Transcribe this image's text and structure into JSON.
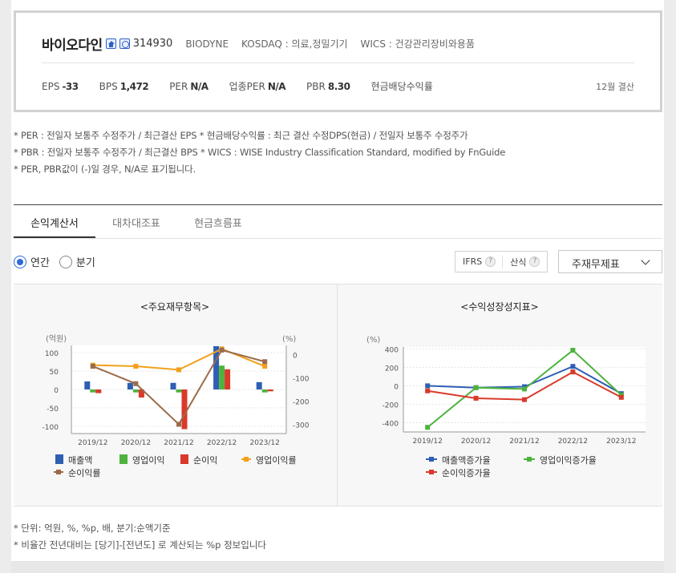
{
  "company": {
    "name": "바이오다인",
    "code": "314930",
    "english": "BIODYNE",
    "market": "KOSDAQ : 의료,정밀기기",
    "wics": "WICS : 건강관리장비와용품"
  },
  "metrics": [
    {
      "label": "EPS",
      "value": "-33"
    },
    {
      "label": "BPS",
      "value": "1,472"
    },
    {
      "label": "PER",
      "value": "N/A"
    },
    {
      "label": "업종PER",
      "value": "N/A"
    },
    {
      "label": "PBR",
      "value": "8.30"
    },
    {
      "label": "현금배당수익률",
      "value": ""
    }
  ],
  "fiscal": "12월 결산",
  "notes": [
    "* PER : 전일자 보통주 수정주가 / 최근결산 EPS * 현금배당수익률 : 최근 결산 수정DPS(현금) / 전일자 보통주 수정주가",
    "* PBR : 전일자 보통주 수정주가 / 최근결산 BPS * WICS : WISE Industry Classification Standard, modified by FnGuide",
    "* PER, PBR값이 (-)일 경우, N/A로 표기됩니다."
  ],
  "tabs": [
    "손익계산서",
    "대차대조표",
    "현금흐름표"
  ],
  "period": {
    "annual": "연간",
    "quarter": "분기"
  },
  "options": {
    "ifrs": "IFRS",
    "consolidated": "산식",
    "help": "?"
  },
  "select": "주재무제표",
  "colors": {
    "blue": "#2e5fb3",
    "green": "#4db33d",
    "red": "#d93a2b",
    "orange": "#f2a01b",
    "brown": "#9a6b4a"
  },
  "chart_data": [
    {
      "type": "bar",
      "title": "<주요재무항목>",
      "categories": [
        "2019/12",
        "2020/12",
        "2021/12",
        "2022/12",
        "2023/12"
      ],
      "ylabel": "(억원)",
      "y2label": "(%)",
      "ylim": [
        -120,
        120
      ],
      "y2lim": [
        -340,
        40
      ],
      "yticks": [
        100,
        50,
        0,
        -50,
        -100
      ],
      "y2ticks": [
        0,
        -100,
        -200,
        -300
      ],
      "series": [
        {
          "name": "매출액",
          "kind": "bar",
          "color": "#2e5fb3",
          "values": [
            22,
            18,
            18,
            118,
            20
          ]
        },
        {
          "name": "영업이익",
          "kind": "bar",
          "color": "#4db33d",
          "values": [
            -8,
            -8,
            -8,
            65,
            -8
          ]
        },
        {
          "name": "순이익",
          "kind": "bar",
          "color": "#d93a2b",
          "values": [
            -10,
            -22,
            -108,
            55,
            -5
          ]
        },
        {
          "name": "영업이익률",
          "kind": "line",
          "axis": "y2",
          "color": "#f2a01b",
          "values": [
            -45,
            -50,
            -65,
            25,
            -50
          ]
        },
        {
          "name": "순이익률",
          "kind": "line",
          "axis": "y2",
          "color": "#9a6b4a",
          "values": [
            -50,
            -125,
            -300,
            20,
            -30
          ]
        }
      ]
    },
    {
      "type": "line",
      "title": "<수익성장성지표>",
      "categories": [
        "2019/12",
        "2020/12",
        "2021/12",
        "2022/12",
        "2023/12"
      ],
      "ylabel": "(%)",
      "ylim": [
        -500,
        420
      ],
      "yticks": [
        400,
        200,
        0,
        -200,
        -400
      ],
      "series": [
        {
          "name": "매출액증가율",
          "color": "#2e5fb3",
          "values": [
            0,
            -20,
            -10,
            210,
            -85
          ]
        },
        {
          "name": "영업이익증가율",
          "color": "#4db33d",
          "values": [
            -450,
            -20,
            -35,
            385,
            -100
          ]
        },
        {
          "name": "순이익증가율",
          "color": "#d93a2b",
          "values": [
            -55,
            -135,
            -150,
            150,
            -125
          ]
        }
      ]
    }
  ],
  "footnotes": [
    "* 단위: 억원, %, %p, 배, 분기:순액기준",
    "* 비율간 전년대비는 [당기]-[전년도] 로 계산되는 %p 정보입니다"
  ]
}
